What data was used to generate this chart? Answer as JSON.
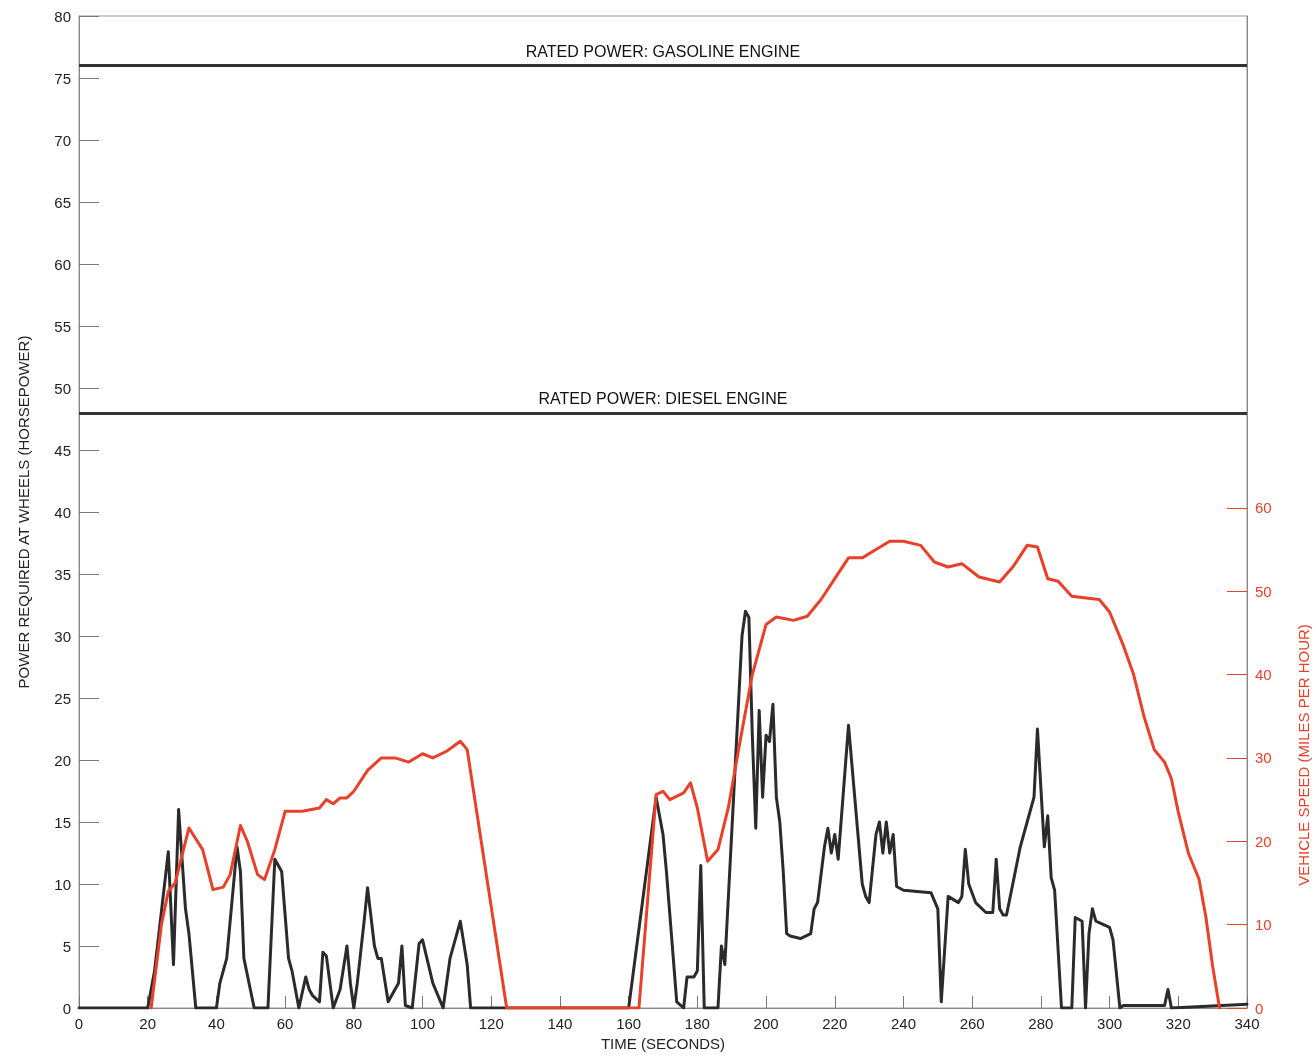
{
  "chart_data": {
    "type": "line",
    "xlabel": "TIME (SECONDS)",
    "ylabel": "POWER REQUIRED AT WHEELS (HORSEPOWER)",
    "y2label": "VEHICLE SPEED (MILES PER HOUR)",
    "xlim": [
      0,
      340
    ],
    "xticks": [
      0,
      20,
      40,
      60,
      80,
      100,
      120,
      140,
      160,
      180,
      200,
      220,
      240,
      260,
      280,
      300,
      320,
      340
    ],
    "ylim": [
      0,
      80
    ],
    "yticks": [
      0,
      5,
      10,
      15,
      20,
      25,
      30,
      35,
      40,
      45,
      50,
      55,
      60,
      65,
      70,
      75,
      80
    ],
    "y2lim": [
      0,
      119
    ],
    "y2ticks": [
      0,
      10,
      20,
      30,
      40,
      50,
      60
    ],
    "grid": false,
    "marker": "none",
    "line_style": "solid",
    "ref_lines": [
      {
        "axis": "y",
        "value": 76,
        "label": "RATED POWER: GASOLINE ENGINE",
        "color": "#333333"
      },
      {
        "axis": "y",
        "value": 48,
        "label": "RATED POWER: DIESEL ENGINE",
        "color": "#333333"
      }
    ],
    "series": [
      {
        "color": "#2b2b2b",
        "x": [
          0,
          20,
          22,
          26,
          27.5,
          29,
          31,
          32,
          34,
          40,
          41,
          43,
          46,
          47,
          48,
          51,
          55,
          57,
          59,
          61,
          62,
          64,
          66,
          67,
          68,
          70,
          71,
          72,
          74,
          76,
          78,
          79,
          80,
          81,
          83,
          84,
          86,
          87,
          88,
          90,
          91,
          93,
          94,
          95,
          97,
          99,
          100,
          103,
          106,
          108,
          110,
          111,
          113,
          114,
          120,
          160,
          168,
          170,
          171,
          174,
          176,
          177,
          179,
          180,
          181,
          182,
          186,
          187,
          188,
          193,
          194,
          195,
          196,
          197,
          198,
          199,
          200,
          201,
          202,
          203,
          204,
          205,
          206,
          207,
          210,
          213,
          214,
          215,
          217,
          218,
          219,
          220,
          221,
          224,
          228,
          229,
          230,
          232,
          233,
          234,
          235,
          236,
          237,
          238,
          240,
          248,
          250,
          251,
          253,
          256,
          257,
          258,
          259,
          261,
          264,
          266,
          267,
          268,
          269,
          270,
          274,
          276,
          278,
          279,
          281,
          282,
          283,
          284,
          286,
          289,
          290,
          292,
          293,
          294,
          295,
          296,
          300,
          301,
          303,
          304,
          316,
          317,
          318,
          340
        ],
        "values": [
          0,
          0,
          3,
          12.6,
          3.5,
          16,
          8,
          6,
          0,
          0,
          2,
          4,
          13,
          11,
          4,
          0,
          0,
          12,
          11,
          4,
          3,
          0,
          2.5,
          1.5,
          1,
          0.5,
          4.5,
          4.2,
          0,
          1.5,
          5,
          2,
          0,
          2,
          7,
          9.7,
          5,
          4,
          4,
          0.5,
          1,
          2,
          5,
          0.2,
          0,
          5.2,
          5.5,
          2,
          0,
          4,
          6,
          7,
          3.5,
          0,
          0,
          0,
          17,
          14,
          11,
          0.5,
          0,
          2.5,
          2.5,
          3,
          11.5,
          0,
          0,
          5,
          3.5,
          30,
          32,
          31.5,
          22,
          14.5,
          24,
          17,
          22,
          21.5,
          24.5,
          17,
          15,
          11,
          6,
          5.8,
          5.6,
          6,
          8,
          8.5,
          13,
          14.5,
          12.5,
          14,
          12,
          22.8,
          10,
          9,
          8.5,
          14,
          15,
          12.5,
          15,
          12.5,
          14,
          9.8,
          9.5,
          9.3,
          8,
          0.5,
          9,
          8.5,
          9,
          12.8,
          10,
          8.5,
          7.7,
          7.7,
          12,
          8,
          7.5,
          7.5,
          13,
          15,
          17,
          22.5,
          13,
          15.5,
          10.5,
          9.5,
          0,
          0,
          7.3,
          7,
          0,
          6,
          8,
          7,
          6.5,
          5.5,
          0,
          0.2,
          0.2,
          1.5,
          0,
          0.3
        ]
      },
      {
        "color": "#e8402a",
        "axis": "y2",
        "x": [
          21,
          24,
          26,
          28,
          32,
          36,
          39,
          42,
          44,
          47,
          49,
          52,
          54,
          57,
          60,
          65,
          70,
          72,
          74,
          76,
          78,
          80,
          84,
          88,
          92,
          96,
          100,
          103,
          107,
          111,
          113,
          124.5,
          163,
          168,
          170,
          172,
          176,
          178,
          180,
          183,
          186,
          189,
          192,
          196,
          200,
          203,
          208,
          212,
          216,
          220,
          224,
          228,
          232,
          236,
          240,
          245,
          249,
          253,
          257,
          262,
          268,
          272,
          276,
          279,
          282,
          285,
          289,
          295,
          297,
          300,
          304,
          307,
          310,
          313,
          316,
          318,
          320,
          323,
          326,
          328,
          330,
          332
        ],
        "values": [
          0,
          10,
          14,
          15,
          21.6,
          19,
          14.2,
          14.5,
          16,
          21.9,
          20,
          16,
          15.4,
          19,
          23.6,
          23.6,
          24,
          25,
          24.5,
          25.2,
          25.2,
          26,
          28.5,
          30,
          30,
          29.5,
          30.5,
          30,
          30.8,
          32,
          31,
          0,
          0,
          25.6,
          26,
          25,
          25.8,
          27,
          24,
          17.6,
          19,
          24,
          31,
          40,
          46,
          46.9,
          46.5,
          47,
          49,
          51.5,
          54,
          54,
          55,
          56,
          56,
          55.5,
          53.5,
          52.9,
          53.3,
          51.7,
          51.1,
          53,
          55.5,
          55.3,
          51.5,
          51.2,
          49.4,
          49.1,
          49,
          47.5,
          43.5,
          40,
          35,
          31,
          29.5,
          27.5,
          23.5,
          18.5,
          15.5,
          11,
          5,
          0
        ]
      }
    ]
  }
}
